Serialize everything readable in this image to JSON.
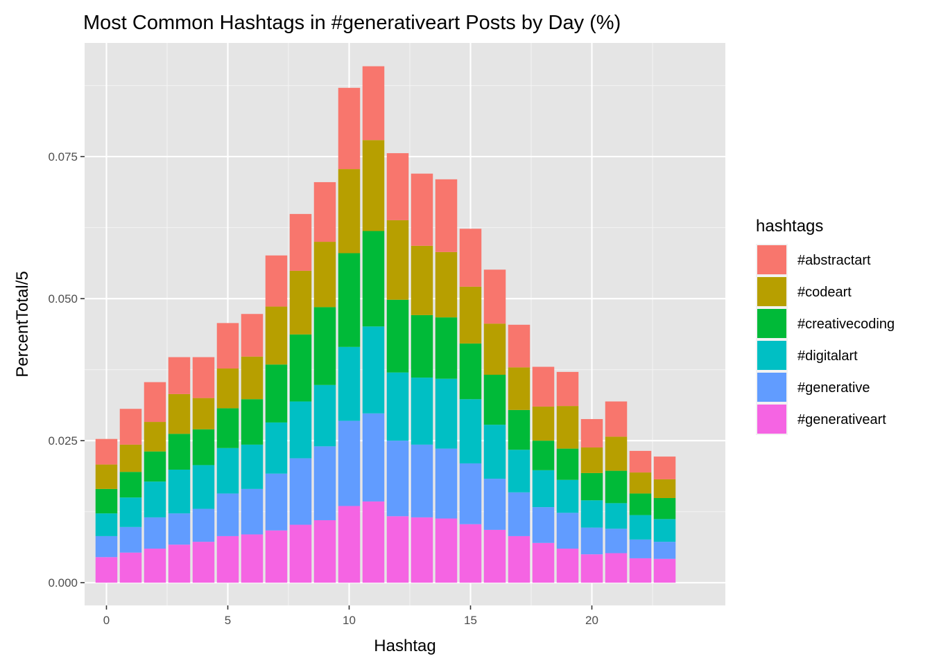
{
  "chart_data": {
    "type": "bar",
    "stacked": true,
    "title": "Most Common Hashtags in #generativeart Posts by Day (%)",
    "xlabel": "Hashtag",
    "ylabel": "PercentTotal/5",
    "x": [
      0,
      1,
      2,
      3,
      4,
      5,
      6,
      7,
      8,
      9,
      10,
      11,
      12,
      13,
      14,
      15,
      16,
      17,
      18,
      19,
      20,
      21,
      22,
      23
    ],
    "xlim": [
      -0.9,
      25.5
    ],
    "ylim": [
      -0.004,
      0.095
    ],
    "x_ticks": [
      0,
      5,
      10,
      15,
      20
    ],
    "x_tick_labels": [
      "0",
      "5",
      "10",
      "15",
      "20"
    ],
    "y_ticks": [
      0,
      0.025,
      0.05,
      0.075
    ],
    "y_tick_labels": [
      "0.000",
      "0.025",
      "0.050",
      "0.075"
    ],
    "grid": true,
    "panel_background": "#e5e5e5",
    "legend": {
      "title": "hashtags",
      "position": "right"
    },
    "stack_order": [
      "#generativeart",
      "#generative",
      "#digitalart",
      "#creativecoding",
      "#codeart",
      "#abstractart"
    ],
    "series": [
      {
        "name": "#abstractart",
        "color": "#f8766d",
        "values": [
          0.0045,
          0.0063,
          0.007,
          0.0065,
          0.0072,
          0.008,
          0.0075,
          0.009,
          0.01,
          0.0105,
          0.0143,
          0.013,
          0.0118,
          0.0127,
          0.0128,
          0.0102,
          0.0095,
          0.0075,
          0.007,
          0.006,
          0.005,
          0.0062,
          0.0038,
          0.004
        ]
      },
      {
        "name": "#codeart",
        "color": "#b79f00",
        "values": [
          0.0043,
          0.0048,
          0.0052,
          0.007,
          0.0055,
          0.007,
          0.0075,
          0.0102,
          0.0112,
          0.0115,
          0.0148,
          0.016,
          0.014,
          0.0122,
          0.0115,
          0.01,
          0.009,
          0.0075,
          0.006,
          0.0075,
          0.0045,
          0.006,
          0.0037,
          0.0033
        ]
      },
      {
        "name": "#creativecoding",
        "color": "#00ba38",
        "values": [
          0.0043,
          0.0045,
          0.0053,
          0.0063,
          0.0063,
          0.007,
          0.008,
          0.0102,
          0.0118,
          0.0137,
          0.0165,
          0.0168,
          0.0128,
          0.011,
          0.0108,
          0.0098,
          0.0088,
          0.007,
          0.0052,
          0.0055,
          0.0048,
          0.0057,
          0.0038,
          0.0037
        ]
      },
      {
        "name": "#digitalart",
        "color": "#00bfc4",
        "values": [
          0.004,
          0.0052,
          0.0063,
          0.0077,
          0.0077,
          0.008,
          0.0078,
          0.009,
          0.01,
          0.0108,
          0.013,
          0.0153,
          0.012,
          0.0118,
          0.0123,
          0.0113,
          0.0095,
          0.0075,
          0.0065,
          0.0058,
          0.0048,
          0.0045,
          0.0043,
          0.004
        ]
      },
      {
        "name": "#generative",
        "color": "#619cff",
        "values": [
          0.0037,
          0.0045,
          0.0055,
          0.0055,
          0.0058,
          0.0075,
          0.008,
          0.01,
          0.0117,
          0.013,
          0.015,
          0.0155,
          0.0133,
          0.0128,
          0.0123,
          0.0107,
          0.009,
          0.0077,
          0.0063,
          0.0063,
          0.0047,
          0.0043,
          0.0033,
          0.003
        ]
      },
      {
        "name": "#generativeart",
        "color": "#f564e3",
        "values": [
          0.0045,
          0.0053,
          0.006,
          0.0067,
          0.0072,
          0.0082,
          0.0085,
          0.0092,
          0.0102,
          0.011,
          0.0135,
          0.0143,
          0.0117,
          0.0115,
          0.0113,
          0.0103,
          0.0093,
          0.0082,
          0.007,
          0.006,
          0.005,
          0.0052,
          0.0043,
          0.0042
        ]
      }
    ]
  }
}
